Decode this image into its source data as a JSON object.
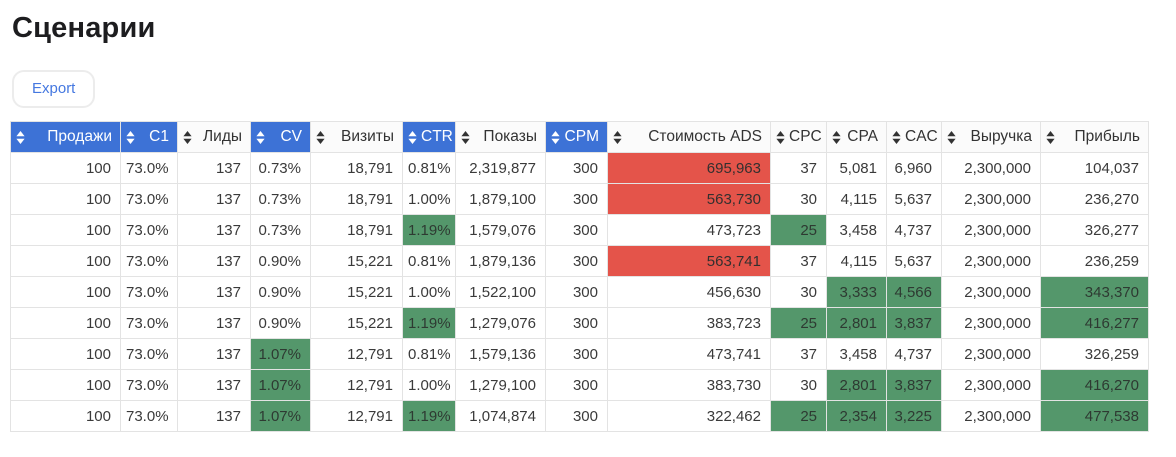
{
  "page": {
    "title": "Сценарии"
  },
  "toolbar": {
    "export_label": "Export"
  },
  "colors": {
    "header_blue": "#3d72d6",
    "bad_red": "#e4544a",
    "good_green": "#54976b"
  },
  "icons": {
    "sort": "sort-up-down-icon"
  },
  "table": {
    "columns": [
      {
        "key": "prodazhi",
        "label": "Продажи",
        "highlight": true,
        "width": 110
      },
      {
        "key": "c1",
        "label": "C1",
        "highlight": true,
        "width": 57
      },
      {
        "key": "lidy",
        "label": "Лиды",
        "highlight": false,
        "width": 73
      },
      {
        "key": "cv",
        "label": "CV",
        "highlight": true,
        "width": 60
      },
      {
        "key": "vizity",
        "label": "Визиты",
        "highlight": false,
        "width": 92
      },
      {
        "key": "ctr",
        "label": "CTR",
        "highlight": true,
        "width": 53
      },
      {
        "key": "pokazy",
        "label": "Показы",
        "highlight": false,
        "width": 90
      },
      {
        "key": "cpm",
        "label": "CPM",
        "highlight": true,
        "width": 62
      },
      {
        "key": "ads",
        "label": "Стоимость ADS",
        "highlight": false,
        "width": 163
      },
      {
        "key": "cpc",
        "label": "CPC",
        "highlight": false,
        "width": 56
      },
      {
        "key": "cpa",
        "label": "CPA",
        "highlight": false,
        "width": 60
      },
      {
        "key": "cac",
        "label": "CAC",
        "highlight": false,
        "width": 55
      },
      {
        "key": "vyruchka",
        "label": "Выручка",
        "highlight": false,
        "width": 99
      },
      {
        "key": "pribyl",
        "label": "Прибыль",
        "highlight": false,
        "width": 108
      }
    ],
    "rows": [
      [
        {
          "v": "100"
        },
        {
          "v": "73.0%"
        },
        {
          "v": "137"
        },
        {
          "v": "0.73%"
        },
        {
          "v": "18,791"
        },
        {
          "v": "0.81%"
        },
        {
          "v": "2,319,877"
        },
        {
          "v": "300"
        },
        {
          "v": "695,963",
          "bg": "red"
        },
        {
          "v": "37"
        },
        {
          "v": "5,081"
        },
        {
          "v": "6,960"
        },
        {
          "v": "2,300,000"
        },
        {
          "v": "104,037"
        }
      ],
      [
        {
          "v": "100"
        },
        {
          "v": "73.0%"
        },
        {
          "v": "137"
        },
        {
          "v": "0.73%"
        },
        {
          "v": "18,791"
        },
        {
          "v": "1.00%"
        },
        {
          "v": "1,879,100"
        },
        {
          "v": "300"
        },
        {
          "v": "563,730",
          "bg": "red"
        },
        {
          "v": "30"
        },
        {
          "v": "4,115"
        },
        {
          "v": "5,637"
        },
        {
          "v": "2,300,000"
        },
        {
          "v": "236,270"
        }
      ],
      [
        {
          "v": "100"
        },
        {
          "v": "73.0%"
        },
        {
          "v": "137"
        },
        {
          "v": "0.73%"
        },
        {
          "v": "18,791"
        },
        {
          "v": "1.19%",
          "bg": "green"
        },
        {
          "v": "1,579,076"
        },
        {
          "v": "300"
        },
        {
          "v": "473,723"
        },
        {
          "v": "25",
          "bg": "green"
        },
        {
          "v": "3,458"
        },
        {
          "v": "4,737"
        },
        {
          "v": "2,300,000"
        },
        {
          "v": "326,277"
        }
      ],
      [
        {
          "v": "100"
        },
        {
          "v": "73.0%"
        },
        {
          "v": "137"
        },
        {
          "v": "0.90%"
        },
        {
          "v": "15,221"
        },
        {
          "v": "0.81%"
        },
        {
          "v": "1,879,136"
        },
        {
          "v": "300"
        },
        {
          "v": "563,741",
          "bg": "red"
        },
        {
          "v": "37"
        },
        {
          "v": "4,115"
        },
        {
          "v": "5,637"
        },
        {
          "v": "2,300,000"
        },
        {
          "v": "236,259"
        }
      ],
      [
        {
          "v": "100"
        },
        {
          "v": "73.0%"
        },
        {
          "v": "137"
        },
        {
          "v": "0.90%"
        },
        {
          "v": "15,221"
        },
        {
          "v": "1.00%"
        },
        {
          "v": "1,522,100"
        },
        {
          "v": "300"
        },
        {
          "v": "456,630"
        },
        {
          "v": "30"
        },
        {
          "v": "3,333",
          "bg": "green"
        },
        {
          "v": "4,566",
          "bg": "green"
        },
        {
          "v": "2,300,000"
        },
        {
          "v": "343,370",
          "bg": "green"
        }
      ],
      [
        {
          "v": "100"
        },
        {
          "v": "73.0%"
        },
        {
          "v": "137"
        },
        {
          "v": "0.90%"
        },
        {
          "v": "15,221"
        },
        {
          "v": "1.19%",
          "bg": "green"
        },
        {
          "v": "1,279,076"
        },
        {
          "v": "300"
        },
        {
          "v": "383,723"
        },
        {
          "v": "25",
          "bg": "green"
        },
        {
          "v": "2,801",
          "bg": "green"
        },
        {
          "v": "3,837",
          "bg": "green"
        },
        {
          "v": "2,300,000"
        },
        {
          "v": "416,277",
          "bg": "green"
        }
      ],
      [
        {
          "v": "100"
        },
        {
          "v": "73.0%"
        },
        {
          "v": "137"
        },
        {
          "v": "1.07%",
          "bg": "green"
        },
        {
          "v": "12,791"
        },
        {
          "v": "0.81%"
        },
        {
          "v": "1,579,136"
        },
        {
          "v": "300"
        },
        {
          "v": "473,741"
        },
        {
          "v": "37"
        },
        {
          "v": "3,458"
        },
        {
          "v": "4,737"
        },
        {
          "v": "2,300,000"
        },
        {
          "v": "326,259"
        }
      ],
      [
        {
          "v": "100"
        },
        {
          "v": "73.0%"
        },
        {
          "v": "137"
        },
        {
          "v": "1.07%",
          "bg": "green"
        },
        {
          "v": "12,791"
        },
        {
          "v": "1.00%"
        },
        {
          "v": "1,279,100"
        },
        {
          "v": "300"
        },
        {
          "v": "383,730"
        },
        {
          "v": "30"
        },
        {
          "v": "2,801",
          "bg": "green"
        },
        {
          "v": "3,837",
          "bg": "green"
        },
        {
          "v": "2,300,000"
        },
        {
          "v": "416,270",
          "bg": "green"
        }
      ],
      [
        {
          "v": "100"
        },
        {
          "v": "73.0%"
        },
        {
          "v": "137"
        },
        {
          "v": "1.07%",
          "bg": "green"
        },
        {
          "v": "12,791"
        },
        {
          "v": "1.19%",
          "bg": "green"
        },
        {
          "v": "1,074,874"
        },
        {
          "v": "300"
        },
        {
          "v": "322,462"
        },
        {
          "v": "25",
          "bg": "green"
        },
        {
          "v": "2,354",
          "bg": "green"
        },
        {
          "v": "3,225",
          "bg": "green"
        },
        {
          "v": "2,300,000"
        },
        {
          "v": "477,538",
          "bg": "green"
        }
      ]
    ]
  }
}
